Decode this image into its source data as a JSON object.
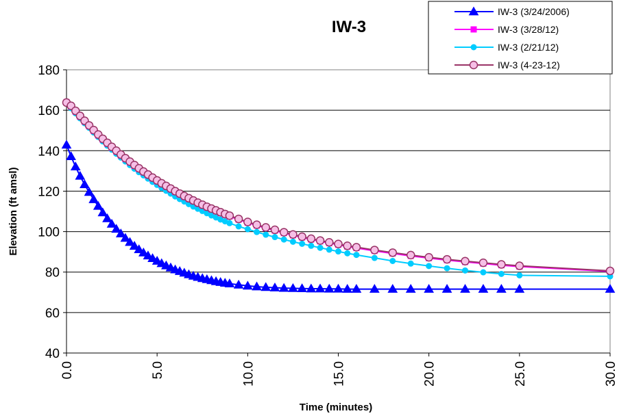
{
  "chart_data": {
    "type": "line",
    "title": "IW-3",
    "xlabel": "Time (minutes)",
    "ylabel": "Elevation (ft amsl)",
    "xlim": [
      0,
      30
    ],
    "ylim": [
      40,
      180
    ],
    "x_ticks": [
      "0.0",
      "5.0",
      "10.0",
      "15.0",
      "20.0",
      "25.0",
      "30.0"
    ],
    "y_ticks": [
      "40",
      "60",
      "80",
      "100",
      "120",
      "140",
      "160",
      "180"
    ],
    "grid": "horizontal",
    "legend_position": "top-right",
    "series": [
      {
        "name": "IW-3 (3/24/2006)",
        "color": "#0000ff",
        "marker": "triangle",
        "x": [
          0,
          0.25,
          0.5,
          0.75,
          1.0,
          1.25,
          1.5,
          1.75,
          2.0,
          2.25,
          2.5,
          2.75,
          3.0,
          3.25,
          3.5,
          3.75,
          4.0,
          4.25,
          4.5,
          4.75,
          5.0,
          5.25,
          5.5,
          5.75,
          6.0,
          6.25,
          6.5,
          6.75,
          7.0,
          7.25,
          7.5,
          7.75,
          8.0,
          8.25,
          8.5,
          8.75,
          9.0,
          9.5,
          10.0,
          10.5,
          11.0,
          11.5,
          12.0,
          12.5,
          13.0,
          13.5,
          14.0,
          14.5,
          15.0,
          15.5,
          16.0,
          17.0,
          18.0,
          19.0,
          20.0,
          21.0,
          22.0,
          23.0,
          24.0,
          25.0,
          30.0
        ],
        "values": [
          142.9,
          137.2,
          132.1,
          127.5,
          123.3,
          119.5,
          115.9,
          112.6,
          109.4,
          106.5,
          103.8,
          101.3,
          99.0,
          96.8,
          94.8,
          92.9,
          91.2,
          89.6,
          88.1,
          86.8,
          85.5,
          84.3,
          83.2,
          82.2,
          81.2,
          80.4,
          79.6,
          78.8,
          78.1,
          77.5,
          76.9,
          76.4,
          75.9,
          75.4,
          75.0,
          74.6,
          74.3,
          73.7,
          73.2,
          72.8,
          72.5,
          72.3,
          72.1,
          72.0,
          71.9,
          71.8,
          71.8,
          71.7,
          71.7,
          71.6,
          71.6,
          71.6,
          71.6,
          71.6,
          71.6,
          71.6,
          71.6,
          71.6,
          71.6,
          71.6,
          71.6
        ]
      },
      {
        "name": "IW-3 (3/28/12)",
        "color": "#ff00ff",
        "marker": "square",
        "x": [
          0,
          0.25,
          0.5,
          0.75,
          1.0,
          1.25,
          1.5,
          1.75,
          2.0,
          2.25,
          2.5,
          2.75,
          3.0,
          3.25,
          3.5,
          3.75,
          4.0,
          4.25,
          4.5,
          4.75,
          5.0,
          5.25,
          5.5,
          5.75,
          6.0,
          6.25,
          6.5,
          6.75,
          7.0,
          7.25,
          7.5,
          7.75,
          8.0,
          8.25,
          8.5,
          8.75,
          9.0,
          9.5,
          10.0,
          10.5,
          11.0,
          11.5,
          12.0,
          12.5,
          13.0,
          13.5,
          14.0,
          14.5,
          15.0,
          15.5,
          16.0,
          17.0,
          18.0,
          19.0,
          20.0,
          21.0,
          22.0,
          23.0,
          24.0,
          25.0,
          30.0
        ],
        "values": [
          164.0,
          161.9,
          159.3,
          156.8,
          154.4,
          152.1,
          149.8,
          147.6,
          145.5,
          143.5,
          141.5,
          139.6,
          137.7,
          135.9,
          134.2,
          132.5,
          130.9,
          129.3,
          127.8,
          126.3,
          124.9,
          123.5,
          122.2,
          120.9,
          119.6,
          118.4,
          117.2,
          116.1,
          115.0,
          113.9,
          112.9,
          111.9,
          111.0,
          110.1,
          109.2,
          108.3,
          107.5,
          105.9,
          104.4,
          103.0,
          101.7,
          100.5,
          99.3,
          98.2,
          97.1,
          96.1,
          95.2,
          94.3,
          93.5,
          92.6,
          91.9,
          90.5,
          89.2,
          88.0,
          86.9,
          85.9,
          85.0,
          84.2,
          83.4,
          82.7,
          80.3
        ]
      },
      {
        "name": "IW-3 (2/21/12)",
        "color": "#00ccff",
        "marker": "circle",
        "x": [
          0,
          0.25,
          0.5,
          0.75,
          1.0,
          1.25,
          1.5,
          1.75,
          2.0,
          2.25,
          2.5,
          2.75,
          3.0,
          3.25,
          3.5,
          3.75,
          4.0,
          4.25,
          4.5,
          4.75,
          5.0,
          5.25,
          5.5,
          5.75,
          6.0,
          6.25,
          6.5,
          6.75,
          7.0,
          7.25,
          7.5,
          7.75,
          8.0,
          8.25,
          8.5,
          8.75,
          9.0,
          9.5,
          10.0,
          10.5,
          11.0,
          11.5,
          12.0,
          12.5,
          13.0,
          13.5,
          14.0,
          14.5,
          15.0,
          15.5,
          16.0,
          17.0,
          18.0,
          19.0,
          20.0,
          21.0,
          22.0,
          23.0,
          24.0,
          25.0,
          30.0
        ],
        "values": [
          163.5,
          161.0,
          158.5,
          156.0,
          153.6,
          151.3,
          149.0,
          146.8,
          144.6,
          142.5,
          140.5,
          138.5,
          136.6,
          134.7,
          132.9,
          131.1,
          129.4,
          127.8,
          126.2,
          124.6,
          123.1,
          121.6,
          120.2,
          118.8,
          117.4,
          116.1,
          114.9,
          113.6,
          112.4,
          111.3,
          110.2,
          109.1,
          108.0,
          107.0,
          106.0,
          105.1,
          104.2,
          102.6,
          101.2,
          99.8,
          98.5,
          97.3,
          96.1,
          95.0,
          94.0,
          93.0,
          92.0,
          91.1,
          90.2,
          89.3,
          88.5,
          87.0,
          85.5,
          84.2,
          83.0,
          81.9,
          80.8,
          79.9,
          79.1,
          78.4,
          77.9
        ]
      },
      {
        "name": "IW-3 (4-23-12)",
        "color": "#993366",
        "marker": "open-circle",
        "x": [
          0,
          0.25,
          0.5,
          0.75,
          1.0,
          1.25,
          1.5,
          1.75,
          2.0,
          2.25,
          2.5,
          2.75,
          3.0,
          3.25,
          3.5,
          3.75,
          4.0,
          4.25,
          4.5,
          4.75,
          5.0,
          5.25,
          5.5,
          5.75,
          6.0,
          6.25,
          6.5,
          6.75,
          7.0,
          7.25,
          7.5,
          7.75,
          8.0,
          8.25,
          8.5,
          8.75,
          9.0,
          9.5,
          10.0,
          10.5,
          11.0,
          11.5,
          12.0,
          12.5,
          13.0,
          13.5,
          14.0,
          14.5,
          15.0,
          15.5,
          16.0,
          17.0,
          18.0,
          19.0,
          20.0,
          21.0,
          22.0,
          23.0,
          24.0,
          25.0,
          30.0
        ],
        "values": [
          163.8,
          162.2,
          159.7,
          157.2,
          154.8,
          152.5,
          150.2,
          148.0,
          145.9,
          143.9,
          141.9,
          140.0,
          138.1,
          136.3,
          134.6,
          132.9,
          131.3,
          129.7,
          128.2,
          126.7,
          125.3,
          123.9,
          122.6,
          121.3,
          120.0,
          118.8,
          117.6,
          116.5,
          115.4,
          114.3,
          113.3,
          112.3,
          111.4,
          110.5,
          109.6,
          108.7,
          107.9,
          106.3,
          104.8,
          103.4,
          102.1,
          100.9,
          99.7,
          98.6,
          97.5,
          96.5,
          95.6,
          94.7,
          93.9,
          93.0,
          92.3,
          90.9,
          89.6,
          88.4,
          87.3,
          86.3,
          85.4,
          84.6,
          83.8,
          83.1,
          80.6
        ]
      }
    ]
  }
}
